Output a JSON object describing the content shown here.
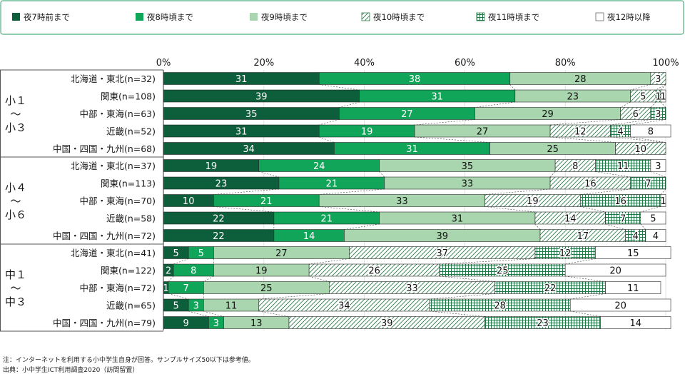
{
  "chart_data": {
    "type": "bar",
    "orientation": "horizontal",
    "stacked": true,
    "xlim": [
      0,
      100
    ],
    "x_ticks": [
      "0%",
      "20%",
      "40%",
      "60%",
      "80%",
      "100%"
    ],
    "legend_position": "top",
    "series_names": [
      "夜7時前まで",
      "夜8時頃まで",
      "夜9時頃まで",
      "夜10時頃まで",
      "夜11時頃まで",
      "夜12時以降"
    ],
    "series_colors": [
      "#0d5e3a",
      "#10a558",
      "#a9d6ae",
      "#ffffff",
      "#ffffff",
      "#ffffff"
    ],
    "series_patterns": [
      "solid",
      "solid",
      "solid",
      "diagonal",
      "grid",
      "none"
    ],
    "groups": [
      {
        "label_lines": [
          "小１",
          "～",
          "小３"
        ],
        "rows": [
          {
            "label": "北海道・東北(n=32)",
            "values": [
              31,
              38,
              28,
              3,
              0,
              0
            ]
          },
          {
            "label": "関東(n=108)",
            "values": [
              39,
              31,
              23,
              5,
              1,
              1
            ]
          },
          {
            "label": "中部・東海(n=63)",
            "values": [
              35,
              27,
              29,
              6,
              3,
              0
            ]
          },
          {
            "label": "近畿(n=52)",
            "values": [
              31,
              19,
              27,
              12,
              4,
              8
            ]
          },
          {
            "label": "中国・四国・九州(n=68)",
            "values": [
              34,
              31,
              25,
              10,
              0,
              0
            ]
          }
        ]
      },
      {
        "label_lines": [
          "小４",
          "～",
          "小６"
        ],
        "rows": [
          {
            "label": "北海道・東北(n=37)",
            "values": [
              19,
              24,
              35,
              8,
              11,
              3
            ]
          },
          {
            "label": "関東(n=113)",
            "values": [
              23,
              21,
              33,
              16,
              7,
              0
            ]
          },
          {
            "label": "中部・東海(n=70)",
            "values": [
              10,
              21,
              33,
              19,
              16,
              1
            ]
          },
          {
            "label": "近畿(n=58)",
            "values": [
              22,
              21,
              31,
              14,
              7,
              5
            ]
          },
          {
            "label": "中国・四国・九州(n=72)",
            "values": [
              22,
              14,
              39,
              17,
              4,
              4
            ]
          }
        ]
      },
      {
        "label_lines": [
          "中１",
          "～",
          "中３"
        ],
        "rows": [
          {
            "label": "北海道・東北(n=41)",
            "values": [
              5,
              5,
              27,
              37,
              12,
              15
            ]
          },
          {
            "label": "関東(n=122)",
            "values": [
              2,
              8,
              19,
              26,
              25,
              20
            ]
          },
          {
            "label": "中部・東海(n=72)",
            "values": [
              1,
              7,
              25,
              33,
              22,
              11
            ]
          },
          {
            "label": "近畿(n=65)",
            "values": [
              5,
              3,
              11,
              34,
              28,
              20
            ]
          },
          {
            "label": "中国・四国・九州(n=79)",
            "values": [
              9,
              3,
              13,
              39,
              23,
              14
            ]
          }
        ]
      }
    ]
  },
  "notes": {
    "line1": "注：インターネットを利用する小中学生自身が回答。サンプルサイズ50以下は参考値。",
    "line2": "出典：小中学生ICT利用調査2020（訪問留置）"
  }
}
